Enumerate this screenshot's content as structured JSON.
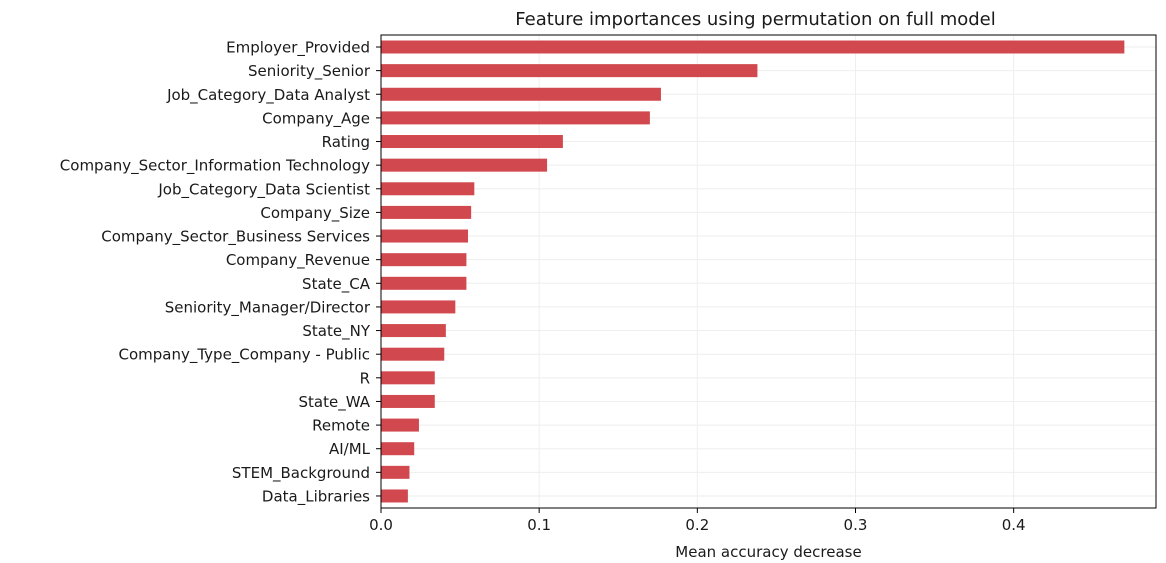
{
  "chart_data": {
    "type": "bar",
    "orientation": "horizontal",
    "title": "Feature importances using permutation on full model",
    "xlabel": "Mean accuracy decrease",
    "ylabel": "",
    "xlim": [
      0,
      0.49
    ],
    "xticks": [
      0.0,
      0.1,
      0.2,
      0.3,
      0.4
    ],
    "xtick_labels": [
      "0.0",
      "0.1",
      "0.2",
      "0.3",
      "0.4"
    ],
    "grid": true,
    "bar_color": "#d1494e",
    "categories": [
      "Employer_Provided",
      "Seniority_Senior",
      "Job_Category_Data Analyst",
      "Company_Age",
      "Rating",
      "Company_Sector_Information Technology",
      "Job_Category_Data Scientist",
      "Company_Size",
      "Company_Sector_Business Services",
      "Company_Revenue",
      "State_CA",
      "Seniority_Manager/Director",
      "State_NY",
      "Company_Type_Company - Public",
      "R",
      "State_WA",
      "Remote",
      "AI/ML",
      "STEM_Background",
      "Data_Libraries"
    ],
    "values": [
      0.47,
      0.238,
      0.177,
      0.17,
      0.115,
      0.105,
      0.059,
      0.057,
      0.055,
      0.054,
      0.054,
      0.047,
      0.041,
      0.04,
      0.034,
      0.034,
      0.024,
      0.021,
      0.018,
      0.017
    ]
  }
}
